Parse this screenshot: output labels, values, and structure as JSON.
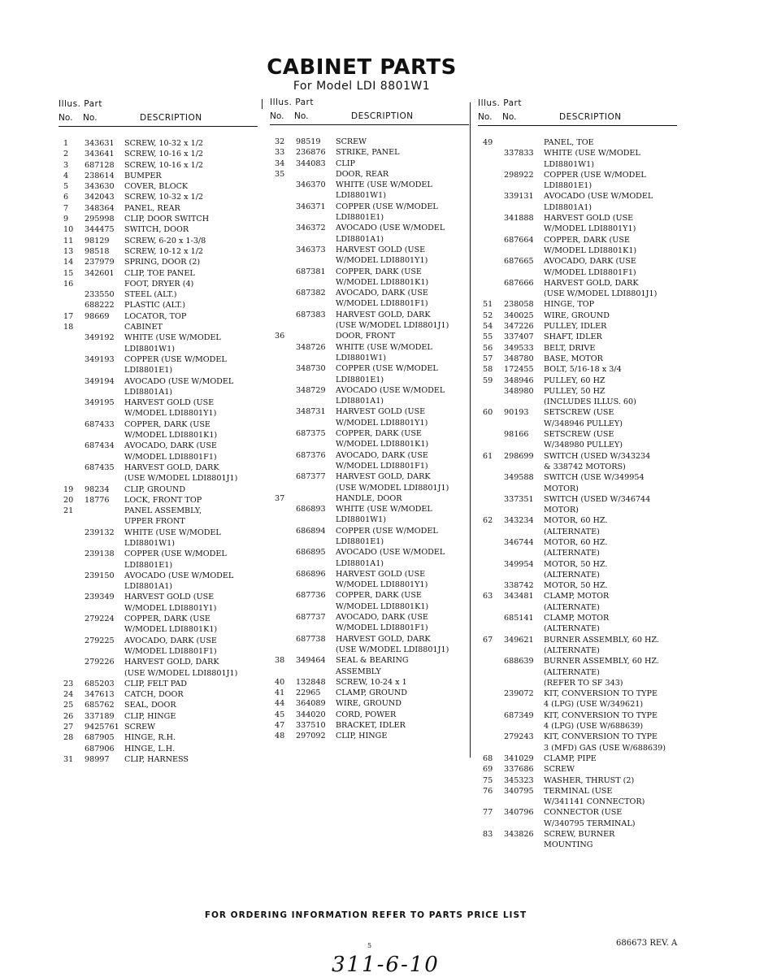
{
  "header": {
    "title": "CABINET PARTS",
    "subtitle": "For Model LDI 8801W1"
  },
  "column_headers": {
    "illus_part": "Illus.   Part",
    "no": "No.",
    "part_no": "No.",
    "description": "DESCRIPTION"
  },
  "columns": [
    [
      {
        "no": "1",
        "part": "343631",
        "desc": [
          "SCREW, 10-32 x 1/2"
        ]
      },
      {
        "no": "2",
        "part": "343641",
        "desc": [
          "SCREW, 10-16 x 1/2"
        ]
      },
      {
        "no": "3",
        "part": "687128",
        "desc": [
          "SCREW, 10-16 x 1/2"
        ]
      },
      {
        "no": "4",
        "part": "238614",
        "desc": [
          "BUMPER"
        ]
      },
      {
        "no": "5",
        "part": "343630",
        "desc": [
          "COVER, BLOCK"
        ]
      },
      {
        "no": "6",
        "part": "342043",
        "desc": [
          "SCREW, 10-32 x 1/2"
        ]
      },
      {
        "no": "7",
        "part": "348364",
        "desc": [
          "PANEL, REAR"
        ]
      },
      {
        "no": "9",
        "part": "295998",
        "desc": [
          "CLIP, DOOR SWITCH"
        ]
      },
      {
        "no": "10",
        "part": "344475",
        "desc": [
          "SWITCH, DOOR"
        ]
      },
      {
        "no": "11",
        "part": "98129",
        "desc": [
          "SCREW, 6-20 x 1-3/8"
        ]
      },
      {
        "no": "13",
        "part": "98518",
        "desc": [
          "SCREW, 10-12 x 1/2"
        ]
      },
      {
        "no": "14",
        "part": "237979",
        "desc": [
          "SPRING, DOOR (2)"
        ]
      },
      {
        "no": "15",
        "part": "342601",
        "desc": [
          "CLIP, TOE PANEL"
        ]
      },
      {
        "no": "16",
        "part": "",
        "desc": [
          "FOOT, DRYER (4)"
        ]
      },
      {
        "no": "",
        "part": "233550",
        "desc": [
          "STEEL (ALT.)"
        ]
      },
      {
        "no": "",
        "part": "688222",
        "desc": [
          "PLASTIC (ALT.)"
        ]
      },
      {
        "no": "17",
        "part": "98669",
        "desc": [
          "LOCATOR, TOP"
        ]
      },
      {
        "no": "18",
        "part": "",
        "desc": [
          "CABINET"
        ]
      },
      {
        "no": "",
        "part": "349192",
        "desc": [
          "WHITE (USE W/MODEL",
          "LDI8801W1)"
        ]
      },
      {
        "no": "",
        "part": "349193",
        "desc": [
          "COPPER (USE W/MODEL",
          "LDI8801E1)"
        ]
      },
      {
        "no": "",
        "part": "349194",
        "desc": [
          "AVOCADO (USE W/MODEL",
          "LDI8801A1)"
        ]
      },
      {
        "no": "",
        "part": "349195",
        "desc": [
          "HARVEST GOLD (USE",
          "W/MODEL LDI8801Y1)"
        ]
      },
      {
        "no": "",
        "part": "687433",
        "desc": [
          "COPPER, DARK (USE",
          "W/MODEL LDI8801K1)"
        ]
      },
      {
        "no": "",
        "part": "687434",
        "desc": [
          "AVOCADO, DARK (USE",
          "W/MODEL LDI8801F1)"
        ]
      },
      {
        "no": "",
        "part": "687435",
        "desc": [
          "HARVEST GOLD, DARK",
          "(USE W/MODEL LDI8801J1)"
        ]
      },
      {
        "no": "19",
        "part": "98234",
        "desc": [
          "CLIP, GROUND"
        ]
      },
      {
        "no": "20",
        "part": "18776",
        "desc": [
          "LOCK, FRONT TOP"
        ]
      },
      {
        "no": "21",
        "part": "",
        "desc": [
          "PANEL ASSEMBLY,",
          "UPPER FRONT"
        ]
      },
      {
        "no": "",
        "part": "239132",
        "desc": [
          "WHITE (USE W/MODEL",
          "LDI8801W1)"
        ]
      },
      {
        "no": "",
        "part": "239138",
        "desc": [
          "COPPER (USE W/MODEL",
          "LDI8801E1)"
        ]
      },
      {
        "no": "",
        "part": "239150",
        "desc": [
          "AVOCADO (USE W/MODEL",
          "LDI8801A1)"
        ]
      },
      {
        "no": "",
        "part": "239349",
        "desc": [
          "HARVEST GOLD (USE",
          "W/MODEL LDI8801Y1)"
        ]
      },
      {
        "no": "",
        "part": "279224",
        "desc": [
          "COPPER, DARK (USE",
          "W/MODEL LDI8801K1)"
        ]
      },
      {
        "no": "",
        "part": "279225",
        "desc": [
          "AVOCADO, DARK (USE",
          "W/MODEL LDI8801F1)"
        ]
      },
      {
        "no": "",
        "part": "279226",
        "desc": [
          "HARVEST GOLD, DARK",
          "(USE W/MODEL LDI8801J1)"
        ]
      },
      {
        "no": "23",
        "part": "685203",
        "desc": [
          "CLIP, FELT PAD"
        ]
      },
      {
        "no": "24",
        "part": "347613",
        "desc": [
          "CATCH, DOOR"
        ]
      },
      {
        "no": "25",
        "part": "685762",
        "desc": [
          "SEAL, DOOR"
        ]
      },
      {
        "no": "26",
        "part": "337189",
        "desc": [
          "CLIP, HINGE"
        ]
      },
      {
        "no": "27",
        "part": "9425761",
        "desc": [
          "SCREW"
        ]
      },
      {
        "no": "28",
        "part": "687905",
        "desc": [
          "HINGE, R.H."
        ]
      },
      {
        "no": "",
        "part": "687906",
        "desc": [
          "HINGE, L.H."
        ]
      },
      {
        "no": "31",
        "part": "98997",
        "desc": [
          "CLIP, HARNESS"
        ]
      }
    ],
    [
      {
        "no": "32",
        "part": "98519",
        "desc": [
          "SCREW"
        ]
      },
      {
        "no": "33",
        "part": "236876",
        "desc": [
          "STRIKE, PANEL"
        ]
      },
      {
        "no": "34",
        "part": "344083",
        "desc": [
          "CLIP"
        ]
      },
      {
        "no": "35",
        "part": "",
        "desc": [
          "DOOR, REAR"
        ]
      },
      {
        "no": "",
        "part": "346370",
        "desc": [
          "WHITE (USE W/MODEL",
          "LDI8801W1)"
        ]
      },
      {
        "no": "",
        "part": "346371",
        "desc": [
          "COPPER (USE W/MODEL",
          "LDI8801E1)"
        ]
      },
      {
        "no": "",
        "part": "346372",
        "desc": [
          "AVOCADO (USE W/MODEL",
          "LDI8801A1)"
        ]
      },
      {
        "no": "",
        "part": "346373",
        "desc": [
          "HARVEST GOLD (USE",
          "W/MODEL LDI8801Y1)"
        ]
      },
      {
        "no": "",
        "part": "687381",
        "desc": [
          "COPPER, DARK (USE",
          "W/MODEL LDI8801K1)"
        ]
      },
      {
        "no": "",
        "part": "687382",
        "desc": [
          "AVOCADO, DARK (USE",
          "W/MODEL LDI8801F1)"
        ]
      },
      {
        "no": "",
        "part": "687383",
        "desc": [
          "HARVEST GOLD, DARK",
          "(USE W/MODEL LDI8801J1)"
        ]
      },
      {
        "no": "36",
        "part": "",
        "desc": [
          "DOOR, FRONT"
        ]
      },
      {
        "no": "",
        "part": "348726",
        "desc": [
          "WHITE (USE W/MODEL",
          "LDI8801W1)"
        ]
      },
      {
        "no": "",
        "part": "348730",
        "desc": [
          "COPPER (USE W/MODEL",
          "LDI8801E1)"
        ]
      },
      {
        "no": "",
        "part": "348729",
        "desc": [
          "AVOCADO (USE W/MODEL",
          "LDI8801A1)"
        ]
      },
      {
        "no": "",
        "part": "348731",
        "desc": [
          "HARVEST GOLD (USE",
          "W/MODEL LDI8801Y1)"
        ]
      },
      {
        "no": "",
        "part": "687375",
        "desc": [
          "COPPER, DARK (USE",
          "W/MODEL LDI8801K1)"
        ]
      },
      {
        "no": "",
        "part": "687376",
        "desc": [
          "AVOCADO, DARK (USE",
          "W/MODEL LDI8801F1)"
        ]
      },
      {
        "no": "",
        "part": "687377",
        "desc": [
          "HARVEST GOLD, DARK",
          "(USE W/MODEL LDI8801J1)"
        ]
      },
      {
        "no": "37",
        "part": "",
        "desc": [
          "HANDLE, DOOR"
        ]
      },
      {
        "no": "",
        "part": "686893",
        "desc": [
          "WHITE (USE W/MODEL",
          "LDI8801W1)"
        ]
      },
      {
        "no": "",
        "part": "686894",
        "desc": [
          "COPPER (USE W/MODEL",
          "LDI8801E1)"
        ]
      },
      {
        "no": "",
        "part": "686895",
        "desc": [
          "AVOCADO (USE W/MODEL",
          "LDI8801A1)"
        ]
      },
      {
        "no": "",
        "part": "686896",
        "desc": [
          "HARVEST GOLD (USE",
          "W/MODEL LDI8801Y1)"
        ]
      },
      {
        "no": "",
        "part": "687736",
        "desc": [
          "COPPER, DARK (USE",
          "W/MODEL LDI8801K1)"
        ]
      },
      {
        "no": "",
        "part": "687737",
        "desc": [
          "AVOCADO, DARK (USE",
          "W/MODEL LDI8801F1)"
        ]
      },
      {
        "no": "",
        "part": "687738",
        "desc": [
          "HARVEST GOLD, DARK",
          "(USE W/MODEL LDI8801J1)"
        ]
      },
      {
        "no": "38",
        "part": "349464",
        "desc": [
          "SEAL & BEARING",
          "ASSEMBLY"
        ]
      },
      {
        "no": "40",
        "part": "132848",
        "desc": [
          "SCREW, 10-24 x 1"
        ]
      },
      {
        "no": "41",
        "part": "22965",
        "desc": [
          "CLAMP, GROUND"
        ]
      },
      {
        "no": "44",
        "part": "364089",
        "desc": [
          "WIRE, GROUND"
        ]
      },
      {
        "no": "45",
        "part": "344020",
        "desc": [
          "CORD, POWER"
        ]
      },
      {
        "no": "47",
        "part": "337510",
        "desc": [
          "BRACKET, IDLER"
        ]
      },
      {
        "no": "48",
        "part": "297092",
        "desc": [
          "CLIP, HINGE"
        ]
      }
    ],
    [
      {
        "no": "49",
        "part": "",
        "desc": [
          "PANEL, TOE"
        ]
      },
      {
        "no": "",
        "part": "337833",
        "desc": [
          "WHITE (USE W/MODEL",
          "LDI8801W1)"
        ]
      },
      {
        "no": "",
        "part": "298922",
        "desc": [
          "COPPER (USE W/MODEL",
          "LDI8801E1)"
        ]
      },
      {
        "no": "",
        "part": "339131",
        "desc": [
          "AVOCADO (USE W/MODEL",
          "LDI8801A1)"
        ]
      },
      {
        "no": "",
        "part": "341888",
        "desc": [
          "HARVEST GOLD (USE",
          "W/MODEL LDI8801Y1)"
        ]
      },
      {
        "no": "",
        "part": "687664",
        "desc": [
          "COPPER, DARK (USE",
          "W/MODEL LDI8801K1)"
        ]
      },
      {
        "no": "",
        "part": "687665",
        "desc": [
          "AVOCADO, DARK (USE",
          "W/MODEL LDI8801F1)"
        ]
      },
      {
        "no": "",
        "part": "687666",
        "desc": [
          "HARVEST GOLD, DARK",
          "(USE W/MODEL LDI8801J1)"
        ]
      },
      {
        "no": "51",
        "part": "238058",
        "desc": [
          "HINGE, TOP"
        ]
      },
      {
        "no": "52",
        "part": "340025",
        "desc": [
          "WIRE, GROUND"
        ]
      },
      {
        "no": "54",
        "part": "347226",
        "desc": [
          "PULLEY, IDLER"
        ]
      },
      {
        "no": "55",
        "part": "337407",
        "desc": [
          "SHAFT, IDLER"
        ]
      },
      {
        "no": "56",
        "part": "349533",
        "desc": [
          "BELT, DRIVE"
        ]
      },
      {
        "no": "57",
        "part": "348780",
        "desc": [
          "BASE, MOTOR"
        ]
      },
      {
        "no": "58",
        "part": "172455",
        "desc": [
          "BOLT, 5/16-18 x 3/4"
        ]
      },
      {
        "no": "59",
        "part": "348946",
        "desc": [
          "PULLEY, 60 HZ"
        ]
      },
      {
        "no": "",
        "part": "348980",
        "desc": [
          "PULLEY, 50 HZ",
          "(INCLUDES ILLUS. 60)"
        ]
      },
      {
        "no": "60",
        "part": "90193",
        "desc": [
          "SETSCREW (USE",
          "W/348946 PULLEY)"
        ]
      },
      {
        "no": "",
        "part": "98166",
        "desc": [
          "SETSCREW (USE",
          "W/348980 PULLEY)"
        ]
      },
      {
        "no": "61",
        "part": "298699",
        "desc": [
          "SWITCH (USED W/343234",
          "& 338742 MOTORS)"
        ]
      },
      {
        "no": "",
        "part": "349588",
        "desc": [
          "SWITCH (USE W/349954",
          "MOTOR)"
        ]
      },
      {
        "no": "",
        "part": "337351",
        "desc": [
          "SWITCH (USED W/346744",
          "MOTOR)"
        ]
      },
      {
        "no": "62",
        "part": "343234",
        "desc": [
          "MOTOR, 60 HZ.",
          "(ALTERNATE)"
        ]
      },
      {
        "no": "",
        "part": "346744",
        "desc": [
          "MOTOR, 60 HZ.",
          "(ALTERNATE)"
        ]
      },
      {
        "no": "",
        "part": "349954",
        "desc": [
          "MOTOR, 50 HZ.",
          "(ALTERNATE)"
        ]
      },
      {
        "no": "",
        "part": "338742",
        "desc": [
          "MOTOR, 50 HZ."
        ]
      },
      {
        "no": "63",
        "part": "343481",
        "desc": [
          "CLAMP, MOTOR",
          "(ALTERNATE)"
        ]
      },
      {
        "no": "",
        "part": "685141",
        "desc": [
          "CLAMP, MOTOR",
          "(ALTERNATE)"
        ]
      },
      {
        "no": "67",
        "part": "349621",
        "desc": [
          "BURNER ASSEMBLY, 60 HZ.",
          "(ALTERNATE)"
        ]
      },
      {
        "no": "",
        "part": "688639",
        "desc": [
          "BURNER ASSEMBLY, 60 HZ.",
          "(ALTERNATE)",
          "(REFER TO SF 343)"
        ]
      },
      {
        "no": "",
        "part": "239072",
        "desc": [
          "KIT, CONVERSION TO TYPE",
          "4 (LPG) (USE W/349621)"
        ]
      },
      {
        "no": "",
        "part": "687349",
        "desc": [
          "KIT, CONVERSION TO TYPE",
          "4 (LPG) (USE W/688639)"
        ]
      },
      {
        "no": "",
        "part": "279243",
        "desc": [
          "KIT, CONVERSION TO TYPE",
          "3 (MFD) GAS (USE W/688639)"
        ]
      },
      {
        "no": "68",
        "part": "341029",
        "desc": [
          "CLAMP, PIPE"
        ]
      },
      {
        "no": "69",
        "part": "337686",
        "desc": [
          "SCREW"
        ]
      },
      {
        "no": "75",
        "part": "345323",
        "desc": [
          "WASHER, THRUST (2)"
        ]
      },
      {
        "no": "76",
        "part": "340795",
        "desc": [
          "TERMINAL (USE",
          "W/341141 CONNECTOR)"
        ]
      },
      {
        "no": "77",
        "part": "340796",
        "desc": [
          "CONNECTOR (USE",
          "W/340795 TERMINAL)"
        ]
      },
      {
        "no": "83",
        "part": "343826",
        "desc": [
          "SCREW, BURNER",
          "MOUNTING"
        ]
      }
    ]
  ],
  "footer": {
    "ordering_note": "FOR ORDERING INFORMATION REFER TO PARTS PRICE LIST",
    "page_number": "5",
    "document_number": "686673  REV. A",
    "handwritten_note": "311-6-10"
  }
}
